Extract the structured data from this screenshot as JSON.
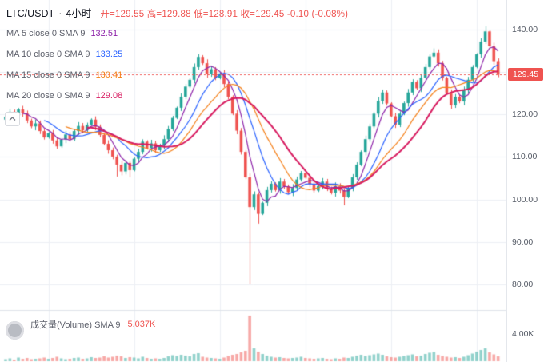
{
  "header": {
    "symbol": "LTC/USDT",
    "separator": "·",
    "interval": "4小时",
    "ohlc_text": "开=129.55 高=129.88 低=128.91 收=129.45 -0.10 (-0.08%)"
  },
  "indicators": [
    {
      "label": "MA 5 close 0 SMA 9",
      "value": "132.51",
      "color": "#8e24aa"
    },
    {
      "label": "MA 10 close 0 SMA 9",
      "value": "133.25",
      "color": "#2962ff"
    },
    {
      "label": "MA 15 close 0 SMA 9",
      "value": "130.41",
      "color": "#f57f17"
    },
    {
      "label": "MA 20 close 0 SMA 9",
      "value": "129.08",
      "color": "#d81b60"
    }
  ],
  "volume_pane": {
    "label": "成交量(Volume) SMA 9",
    "value": "5.037K",
    "value_color": "#ef5350"
  },
  "price_axis": {
    "ticks": [
      "140.00",
      "130.00",
      "120.00",
      "110.00",
      "100.00",
      "90.00",
      "80.00"
    ],
    "last_price": "129.45",
    "badge_color": "#ef5350"
  },
  "volume_axis": {
    "tick": "4.00K"
  },
  "chart_data": {
    "type": "candlestick",
    "title": "LTC/USDT · 4小时",
    "interval": "4h",
    "ylim": [
      74.5,
      147
    ],
    "price_gridlines": [
      80,
      90,
      100,
      110,
      120,
      130,
      140
    ],
    "ohlc_last": {
      "open": 129.55,
      "high": 129.88,
      "low": 128.91,
      "close": 129.45,
      "change": -0.1,
      "change_pct": -0.08
    },
    "last_price": 129.45,
    "up_color": "#26a69a",
    "down_color": "#ef5350",
    "wick": 0.7,
    "first_open": 118.8,
    "volume_scale_max": 12,
    "volume_sma": "5.037K",
    "moving_averages": [
      {
        "name": "MA 5",
        "period": 5,
        "color": "#8e24aa"
      },
      {
        "name": "MA 10",
        "period": 10,
        "color": "#2962ff"
      },
      {
        "name": "MA 15",
        "period": 15,
        "color": "#f57f17"
      },
      {
        "name": "MA 20",
        "period": 20,
        "color": "#d81b60"
      }
    ],
    "closes": [
      119.5,
      120.6,
      119.8,
      121.2,
      120.3,
      118.6,
      117.2,
      117.9,
      116.1,
      114.6,
      115.6,
      113.9,
      112.5,
      114.1,
      115.3,
      114.2,
      116.1,
      117.3,
      116.3,
      117.6,
      118.8,
      117.1,
      115.2,
      113.1,
      111.6,
      110.1,
      108.2,
      106.6,
      108.6,
      106.9,
      109.6,
      111.2,
      113.6,
      112.1,
      113.2,
      111.6,
      112.7,
      114.2,
      116.6,
      119.2,
      121.6,
      124.2,
      126.6,
      128.2,
      131.2,
      133.6,
      132.1,
      129.6,
      130.7,
      128.6,
      129.7,
      127.2,
      124.2,
      120.2,
      116.2,
      111.2,
      105.2,
      98.2,
      101.2,
      96.6,
      99.2,
      102.2,
      103.7,
      102.2,
      104.2,
      103.1,
      101.7,
      102.7,
      104.7,
      106.2,
      105.1,
      103.6,
      102.1,
      103.2,
      104.2,
      102.6,
      101.6,
      103.1,
      102.1,
      100.6,
      102.7,
      105.2,
      108.2,
      111.2,
      114.2,
      117.2,
      120.2,
      123.2,
      125.2,
      122.6,
      119.6,
      117.6,
      120.2,
      122.7,
      125.2,
      127.7,
      126.2,
      128.7,
      131.2,
      133.7,
      134.6,
      132.1,
      128.6,
      125.1,
      122.2,
      124.2,
      123.1,
      125.7,
      128.2,
      131.2,
      134.2,
      137.2,
      139.6,
      136.1,
      132.6,
      129.45
    ],
    "overrides": {
      "26": {
        "low": 105.4
      },
      "29": {
        "low": 105.2
      },
      "57": {
        "low": 80.0
      },
      "59": {
        "low": 94.3
      },
      "79": {
        "low": 98.6
      },
      "100": {
        "high": 135.6
      },
      "112": {
        "high": 140.8
      }
    },
    "volumes": [
      0.5,
      0.7,
      0.4,
      0.9,
      0.6,
      0.8,
      0.5,
      0.6,
      0.7,
      0.9,
      0.6,
      0.8,
      1.1,
      0.7,
      0.5,
      0.6,
      0.8,
      0.9,
      0.6,
      0.7,
      1.0,
      0.8,
      0.9,
      1.2,
      0.9,
      1.1,
      1.4,
      1.2,
      0.8,
      1.0,
      0.9,
      0.7,
      1.1,
      0.8,
      0.6,
      0.7,
      0.6,
      0.8,
      1.2,
      1.5,
      1.3,
      1.6,
      1.4,
      1.2,
      1.8,
      2.0,
      1.1,
      0.9,
      0.8,
      0.7,
      0.6,
      0.9,
      1.3,
      1.6,
      1.8,
      2.2,
      2.6,
      11.4,
      3.2,
      2.4,
      1.8,
      1.4,
      1.1,
      0.9,
      1.0,
      0.8,
      0.7,
      0.8,
      0.9,
      1.1,
      0.8,
      0.7,
      0.6,
      0.7,
      0.8,
      0.6,
      0.5,
      0.7,
      0.6,
      0.9,
      0.8,
      1.1,
      1.4,
      1.6,
      1.3,
      1.5,
      1.7,
      1.9,
      1.6,
      1.2,
      1.0,
      0.9,
      1.1,
      1.3,
      1.5,
      1.7,
      1.2,
      1.4,
      1.8,
      2.1,
      2.3,
      1.6,
      1.3,
      1.1,
      0.9,
      1.0,
      0.8,
      1.1,
      1.5,
      1.9,
      2.4,
      2.8,
      3.2,
      2.2,
      1.7,
      1.2
    ]
  }
}
